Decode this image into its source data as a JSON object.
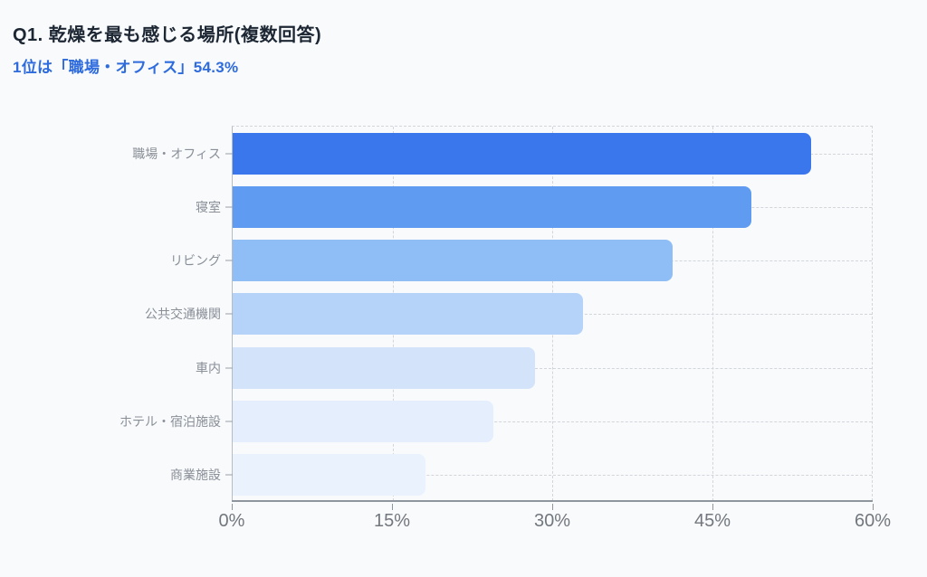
{
  "header": {
    "title": "Q1. 乾燥を最も感じる場所(複数回答)",
    "subtitle": "1位は「職場・オフィス」54.3%"
  },
  "colors": {
    "background": "#f8fafc",
    "title_text": "#1d2633",
    "subtitle_text": "#2e6bdd",
    "category_label_text": "#8a8f97",
    "axis_label_text": "#73777d",
    "axis_line": "#8f959c",
    "gridline": "#d2d6db",
    "bar_colors": [
      "#3a76ec",
      "#5f9bf0",
      "#8ebef5",
      "#b5d3f8",
      "#d2e3fa",
      "#e4eefc",
      "#eaf2fd"
    ]
  },
  "chart_data": {
    "type": "bar",
    "orientation": "horizontal",
    "title": "Q1. 乾燥を最も感じる場所(複数回答)",
    "subtitle": "1位は「職場・オフィス」54.3%",
    "categories": [
      "職場・オフィス",
      "寝室",
      "リビング",
      "公共交通機関",
      "車内",
      "ホテル・宿泊施設",
      "商業施設"
    ],
    "values": [
      54.3,
      48.7,
      41.3,
      32.9,
      28.4,
      24.5,
      18.1
    ],
    "unit": "%",
    "xlim": [
      0,
      60
    ],
    "x_ticks": [
      0,
      15,
      30,
      45,
      60
    ],
    "x_tick_labels": [
      "0%",
      "15%",
      "30%",
      "45%",
      "60%"
    ],
    "grid": "dashed",
    "legend": "none",
    "highlight_note": "top answer labeled in subtitle: 職場・オフィス 54.3%"
  }
}
